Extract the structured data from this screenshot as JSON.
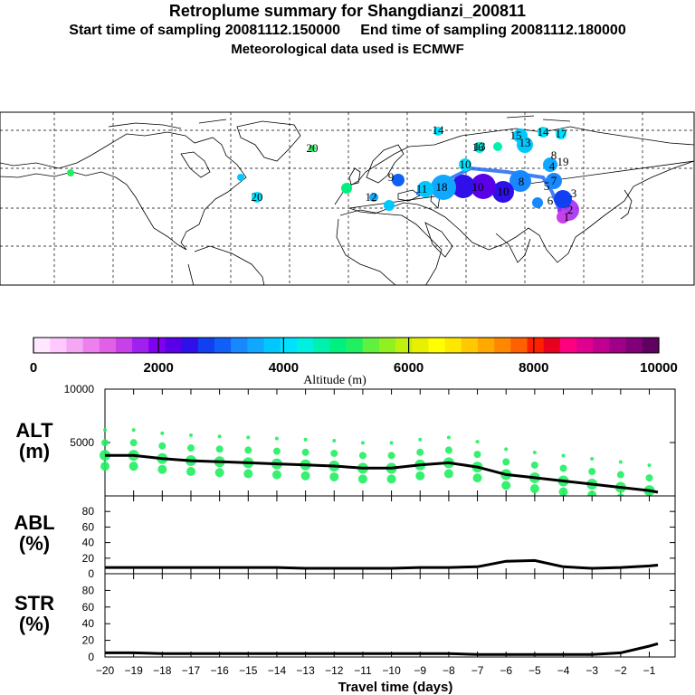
{
  "header": {
    "title": "Retroplume summary for Shangdianzi_200811",
    "subtitle": "Start time of sampling 20081112.150000     End time of sampling 20081112.180000",
    "met_line": "Meteorological data used is ECMWF"
  },
  "colorbar": {
    "label": "Altitude (m)",
    "ticks": [
      "0",
      "2000",
      "4000",
      "6000",
      "8000",
      "10000"
    ],
    "range": [
      0,
      10000
    ],
    "colors": [
      "#ffe8ff",
      "#ffc8ff",
      "#f4a8f4",
      "#ee80ee",
      "#e060e8",
      "#c840e8",
      "#a020f0",
      "#8000f0",
      "#5a00e8",
      "#3010e8",
      "#1040f0",
      "#1060f8",
      "#1888ff",
      "#10a8ff",
      "#00c8ff",
      "#00e0ff",
      "#00f0e0",
      "#00f0b0",
      "#00f080",
      "#20f060",
      "#60f040",
      "#90f020",
      "#c0f010",
      "#e8f000",
      "#ffff00",
      "#ffe800",
      "#ffc800",
      "#ffa800",
      "#ff8800",
      "#ff6000",
      "#ff2000",
      "#e80020",
      "#ff0080",
      "#e00090",
      "#c00090",
      "#a00088",
      "#800078",
      "#600060"
    ]
  },
  "map": {
    "labels": [
      "20",
      "20",
      "8",
      "11",
      "18",
      "10",
      "10",
      "8",
      "13",
      "15",
      "14",
      "12",
      "10",
      "9",
      "7",
      "6",
      "4",
      "3",
      "2",
      "1",
      "19",
      "16",
      "17",
      "5",
      "13",
      "14"
    ],
    "plume_colors": [
      "#00e0ff",
      "#1060f8",
      "#3010e8",
      "#a020f0",
      "#00f080"
    ]
  },
  "chart_data": [
    {
      "type": "line",
      "name": "ALT",
      "ylabel": "ALT",
      "yunit": "(m)",
      "ylim": [
        0,
        10000
      ],
      "ytick_labels": [
        "5000",
        "10000"
      ],
      "ytick_values": [
        5000,
        10000
      ],
      "x": [
        -20,
        -19,
        -18,
        -17,
        -16,
        -15,
        -14,
        -13,
        -12,
        -11,
        -10,
        -9,
        -8,
        -7,
        -6,
        -5,
        -4,
        -3,
        -2,
        -1,
        -0.7
      ],
      "values": [
        3800,
        3800,
        3500,
        3300,
        3200,
        3100,
        3000,
        2900,
        2800,
        2600,
        2600,
        2900,
        3100,
        2700,
        2000,
        1700,
        1400,
        1100,
        800,
        500,
        350
      ],
      "scatter_color": "#20f060"
    },
    {
      "type": "line",
      "name": "ABL",
      "ylabel": "ABL",
      "yunit": "(%)",
      "ylim": [
        0,
        100
      ],
      "ytick_labels": [
        "0",
        "20",
        "40",
        "60",
        "80"
      ],
      "ytick_values": [
        0,
        20,
        40,
        60,
        80
      ],
      "x": [
        -20,
        -19,
        -18,
        -17,
        -16,
        -15,
        -14,
        -13,
        -12,
        -11,
        -10,
        -9,
        -8,
        -7,
        -6,
        -5,
        -4,
        -3,
        -2,
        -1,
        -0.7
      ],
      "values": [
        8,
        8,
        8,
        8,
        8,
        8,
        8,
        7,
        7,
        7,
        7,
        8,
        8,
        9,
        16,
        17,
        9,
        7,
        8,
        10,
        11
      ]
    },
    {
      "type": "line",
      "name": "STR",
      "ylabel": "STR",
      "yunit": "(%)",
      "ylim": [
        0,
        100
      ],
      "ytick_labels": [
        "0",
        "20",
        "40",
        "60",
        "80"
      ],
      "ytick_values": [
        0,
        20,
        40,
        60,
        80
      ],
      "x": [
        -20,
        -19,
        -18,
        -17,
        -16,
        -15,
        -14,
        -13,
        -12,
        -11,
        -10,
        -9,
        -8,
        -7,
        -6,
        -5,
        -4,
        -3,
        -2,
        -1,
        -0.7
      ],
      "values": [
        5,
        5,
        4,
        4,
        4,
        4,
        4,
        4,
        4,
        4,
        4,
        4,
        4,
        3,
        3,
        3,
        3,
        3,
        5,
        13,
        16
      ]
    }
  ],
  "xaxis": {
    "xlabel": "Travel time (days)",
    "ticks": [
      -20,
      -19,
      -18,
      -17,
      -16,
      -15,
      -14,
      -13,
      -12,
      -11,
      -10,
      -9,
      -8,
      -7,
      -6,
      -5,
      -4,
      -3,
      -2,
      -1
    ],
    "tick_labels": [
      "−20",
      "−19",
      "−18",
      "−17",
      "−16",
      "−15",
      "−14",
      "−13",
      "−12",
      "−11",
      "−10",
      "−9",
      "−8",
      "−7",
      "−6",
      "−5",
      "−4",
      "−3",
      "−2",
      "−1"
    ],
    "xlim": [
      -20,
      -0.1
    ]
  }
}
